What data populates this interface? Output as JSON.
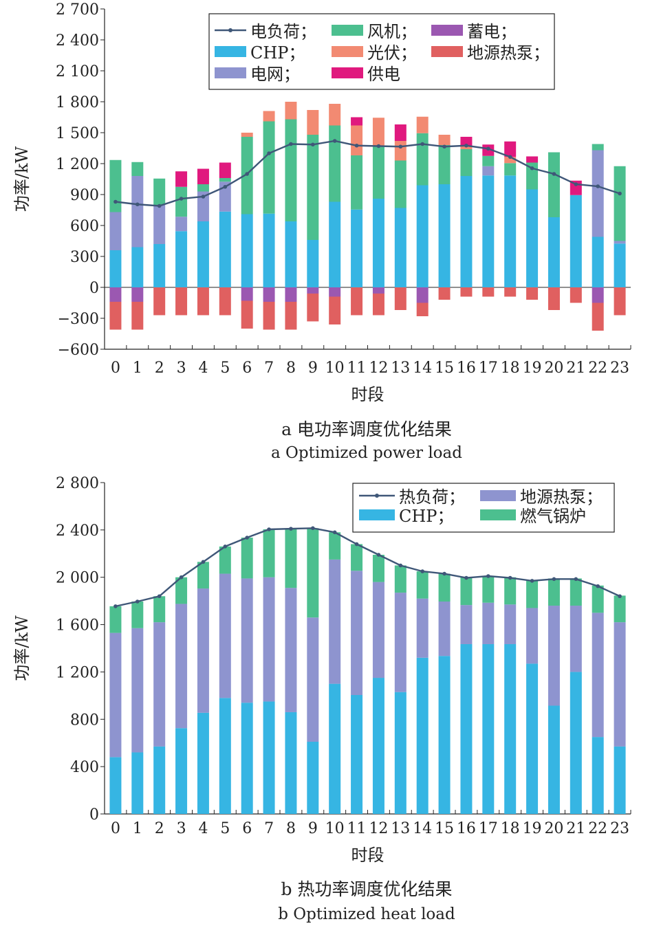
{
  "chart_data": [
    {
      "type": "bar",
      "stacked": true,
      "caption_cn": "a 电功率调度优化结果",
      "caption_en": "a Optimized power load",
      "xlabel": "时段",
      "ylabel": "功率/kW",
      "ylim": [
        -600,
        2700
      ],
      "yticks": [
        -600,
        -300,
        0,
        300,
        600,
        900,
        1200,
        1500,
        1800,
        2100,
        2400,
        2700
      ],
      "ytick_labels": [
        "−600",
        "−300",
        "0",
        "300",
        "600",
        "900",
        "1 200",
        "1 500",
        "1 800",
        "2 100",
        "2 400",
        "2 700"
      ],
      "categories": [
        "0",
        "1",
        "2",
        "3",
        "4",
        "5",
        "6",
        "7",
        "8",
        "9",
        "10",
        "11",
        "12",
        "13",
        "14",
        "15",
        "16",
        "17",
        "18",
        "19",
        "20",
        "21",
        "22",
        "23"
      ],
      "grid": false,
      "legend_position": "top-right",
      "series": [
        {
          "name": "CHP；",
          "color": "#36b5e3",
          "values": [
            360,
            390,
            420,
            545,
            640,
            735,
            710,
            715,
            640,
            460,
            830,
            755,
            860,
            770,
            990,
            1000,
            1080,
            1085,
            1085,
            950,
            680,
            895,
            490,
            425
          ]
        },
        {
          "name": "电网；",
          "color": "#8e94cf",
          "values": [
            370,
            690,
            380,
            140,
            290,
            290,
            0,
            0,
            0,
            0,
            0,
            0,
            0,
            0,
            0,
            0,
            0,
            90,
            0,
            0,
            0,
            0,
            840,
            25
          ]
        },
        {
          "name": "蓄电；",
          "color": "#9b58b1",
          "values": [
            -140,
            -140,
            0,
            0,
            0,
            0,
            -130,
            -140,
            -140,
            -60,
            -90,
            0,
            -60,
            0,
            -150,
            0,
            0,
            0,
            0,
            0,
            0,
            0,
            -150,
            0
          ]
        },
        {
          "name": "风机；",
          "color": "#4cbf8f",
          "values": [
            505,
            135,
            255,
            290,
            70,
            35,
            750,
            895,
            990,
            1020,
            740,
            525,
            515,
            460,
            505,
            380,
            260,
            100,
            120,
            260,
            630,
            0,
            60,
            725
          ]
        },
        {
          "name": "光伏；",
          "color": "#f28a72",
          "values": [
            0,
            0,
            0,
            0,
            0,
            0,
            40,
            100,
            170,
            240,
            210,
            290,
            270,
            190,
            160,
            100,
            30,
            0,
            60,
            0,
            0,
            0,
            0,
            0
          ]
        },
        {
          "name": "供电",
          "color": "#e0197e",
          "values": [
            0,
            0,
            0,
            150,
            150,
            150,
            0,
            0,
            0,
            0,
            0,
            80,
            0,
            160,
            0,
            0,
            90,
            110,
            150,
            60,
            0,
            140,
            0,
            0
          ]
        },
        {
          "name": "地源热泵；",
          "color": "#e06060",
          "values": [
            -270,
            -270,
            -270,
            -270,
            -270,
            -270,
            -270,
            -270,
            -270,
            -270,
            -270,
            -270,
            -210,
            -220,
            -130,
            -120,
            -90,
            -90,
            -90,
            -120,
            -220,
            -150,
            -270,
            -270
          ]
        }
      ],
      "line": {
        "name": "电负荷；",
        "color": "#3f5778",
        "values": [
          830,
          805,
          790,
          860,
          880,
          975,
          1100,
          1300,
          1390,
          1385,
          1420,
          1375,
          1370,
          1365,
          1390,
          1365,
          1375,
          1345,
          1265,
          1155,
          1100,
          1000,
          980,
          910
        ]
      },
      "legend_order": [
        "电负荷；",
        "风机；",
        "蓄电；",
        "CHP；",
        "光伏；",
        "地源热泵；",
        "电网；",
        "供电"
      ]
    },
    {
      "type": "bar",
      "stacked": true,
      "caption_cn": "b 热功率调度优化结果",
      "caption_en": "b Optimized heat load",
      "xlabel": "时段",
      "ylabel": "功率/kW",
      "ylim": [
        0,
        2800
      ],
      "yticks": [
        0,
        400,
        800,
        1200,
        1600,
        2000,
        2400,
        2800
      ],
      "ytick_labels": [
        "0",
        "400",
        "800",
        "1 200",
        "1 600",
        "2 000",
        "2 400",
        "2 800"
      ],
      "categories": [
        "0",
        "1",
        "2",
        "3",
        "4",
        "5",
        "6",
        "7",
        "8",
        "9",
        "10",
        "11",
        "12",
        "13",
        "14",
        "15",
        "16",
        "17",
        "18",
        "19",
        "20",
        "21",
        "22",
        "23"
      ],
      "grid": false,
      "legend_position": "top-right",
      "series": [
        {
          "name": "CHP；",
          "color": "#36b5e3",
          "values": [
            480,
            520,
            570,
            725,
            855,
            980,
            940,
            950,
            860,
            610,
            1100,
            1005,
            1150,
            1030,
            1320,
            1335,
            1435,
            1435,
            1435,
            1270,
            915,
            1200,
            650,
            570
          ]
        },
        {
          "name": "地源热泵；",
          "color": "#8e94cf",
          "values": [
            1050,
            1050,
            1050,
            1050,
            1050,
            1050,
            1050,
            1050,
            1050,
            1050,
            1050,
            1050,
            810,
            840,
            500,
            460,
            330,
            350,
            335,
            470,
            845,
            560,
            1050,
            1050
          ]
        },
        {
          "name": "燃气锅炉",
          "color": "#4cbf8f",
          "values": [
            225,
            225,
            220,
            225,
            225,
            230,
            345,
            405,
            500,
            755,
            230,
            225,
            230,
            230,
            230,
            235,
            235,
            225,
            230,
            230,
            230,
            230,
            230,
            225
          ]
        }
      ],
      "line": {
        "name": "热负荷；",
        "color": "#3f5778",
        "values": [
          1755,
          1795,
          1840,
          2000,
          2130,
          2260,
          2335,
          2405,
          2410,
          2415,
          2380,
          2280,
          2190,
          2100,
          2050,
          2030,
          1995,
          2010,
          1995,
          1970,
          1985,
          1985,
          1925,
          1840
        ]
      },
      "legend_order": [
        "热负荷；",
        "地源热泵；",
        "CHP；",
        "燃气锅炉"
      ]
    }
  ]
}
